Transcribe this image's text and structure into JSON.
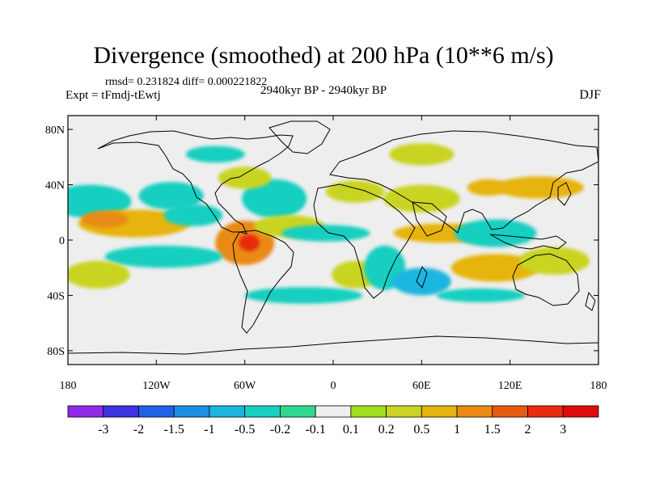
{
  "title": "Divergence (smoothed) at 200 hPa (10**6 m/s)",
  "stats": "rmsd= 0.231824  diff= 0.000221822",
  "experiment": "Expt = tFmdj-tEwtj",
  "period": "2940kyr BP - 2940kyr BP",
  "season": "DJF",
  "chart_data": {
    "type": "heatmap",
    "title": "Divergence (smoothed) at 200 hPa (10**6 m/s)",
    "xlabel": "",
    "ylabel": "",
    "xlim": [
      -180,
      180
    ],
    "ylim": [
      -90,
      90
    ],
    "x_ticks": [
      -180,
      -120,
      -60,
      0,
      60,
      120,
      180
    ],
    "x_tick_labels": [
      "180",
      "120W",
      "60W",
      "0",
      "60E",
      "120E",
      "180"
    ],
    "y_ticks": [
      80,
      40,
      0,
      -40,
      -80
    ],
    "y_tick_labels": [
      "80N",
      "40N",
      "0",
      "40S",
      "80S"
    ],
    "colorbar": {
      "levels": [
        "-3",
        "-2",
        "-1.5",
        "-1",
        "-0.5",
        "-0.2",
        "-0.1",
        "0.1",
        "0.2",
        "0.5",
        "1",
        "1.5",
        "2",
        "3"
      ],
      "colors": [
        "#8e2ae8",
        "#3d33e0",
        "#1f62e6",
        "#1a8fe6",
        "#1bb6e0",
        "#18cfc0",
        "#2fd88e",
        "#eeeeee",
        "#9fe01a",
        "#c9d422",
        "#e6b410",
        "#ea8a12",
        "#e85a10",
        "#e82c0c",
        "#e00a0a"
      ]
    },
    "regions": [
      {
        "lon": -165,
        "lat": 28,
        "value": -0.3,
        "w": 28,
        "h": 12
      },
      {
        "lon": -135,
        "lat": 12,
        "value": 0.6,
        "w": 38,
        "h": 10
      },
      {
        "lon": -155,
        "lat": 15,
        "value": 1.0,
        "w": 16,
        "h": 6
      },
      {
        "lon": -110,
        "lat": 32,
        "value": -0.3,
        "w": 22,
        "h": 10
      },
      {
        "lon": -95,
        "lat": 18,
        "value": -0.3,
        "w": 20,
        "h": 8
      },
      {
        "lon": -60,
        "lat": -2,
        "value": 1.2,
        "w": 20,
        "h": 16
      },
      {
        "lon": -57,
        "lat": -2,
        "value": 2.5,
        "w": 7,
        "h": 6
      },
      {
        "lon": -40,
        "lat": 30,
        "value": -0.3,
        "w": 22,
        "h": 14
      },
      {
        "lon": -60,
        "lat": 45,
        "value": 0.3,
        "w": 18,
        "h": 8
      },
      {
        "lon": -115,
        "lat": -12,
        "value": -0.3,
        "w": 40,
        "h": 8
      },
      {
        "lon": -30,
        "lat": 10,
        "value": 0.4,
        "w": 24,
        "h": 8
      },
      {
        "lon": -5,
        "lat": 5,
        "value": -0.3,
        "w": 30,
        "h": 6
      },
      {
        "lon": 15,
        "lat": 35,
        "value": 0.3,
        "w": 20,
        "h": 8
      },
      {
        "lon": 15,
        "lat": -25,
        "value": 0.3,
        "w": 16,
        "h": 10
      },
      {
        "lon": 35,
        "lat": -20,
        "value": -0.3,
        "w": 14,
        "h": 16
      },
      {
        "lon": 60,
        "lat": 30,
        "value": 0.4,
        "w": 26,
        "h": 10
      },
      {
        "lon": 75,
        "lat": 5,
        "value": 0.6,
        "w": 34,
        "h": 7
      },
      {
        "lon": 60,
        "lat": -30,
        "value": -0.6,
        "w": 20,
        "h": 10
      },
      {
        "lon": 60,
        "lat": 62,
        "value": 0.3,
        "w": 22,
        "h": 8
      },
      {
        "lon": 140,
        "lat": 38,
        "value": 0.8,
        "w": 30,
        "h": 8
      },
      {
        "lon": 105,
        "lat": 38,
        "value": 0.6,
        "w": 14,
        "h": 6
      },
      {
        "lon": 110,
        "lat": 5,
        "value": -0.4,
        "w": 28,
        "h": 10
      },
      {
        "lon": 110,
        "lat": -20,
        "value": 0.5,
        "w": 30,
        "h": 10
      },
      {
        "lon": 150,
        "lat": -15,
        "value": 0.3,
        "w": 24,
        "h": 10
      },
      {
        "lon": -160,
        "lat": -25,
        "value": 0.3,
        "w": 22,
        "h": 10
      },
      {
        "lon": -20,
        "lat": -40,
        "value": -0.3,
        "w": 40,
        "h": 6
      },
      {
        "lon": 100,
        "lat": -40,
        "value": -0.3,
        "w": 30,
        "h": 5
      },
      {
        "lon": -80,
        "lat": 62,
        "value": -0.3,
        "w": 20,
        "h": 6
      }
    ]
  }
}
